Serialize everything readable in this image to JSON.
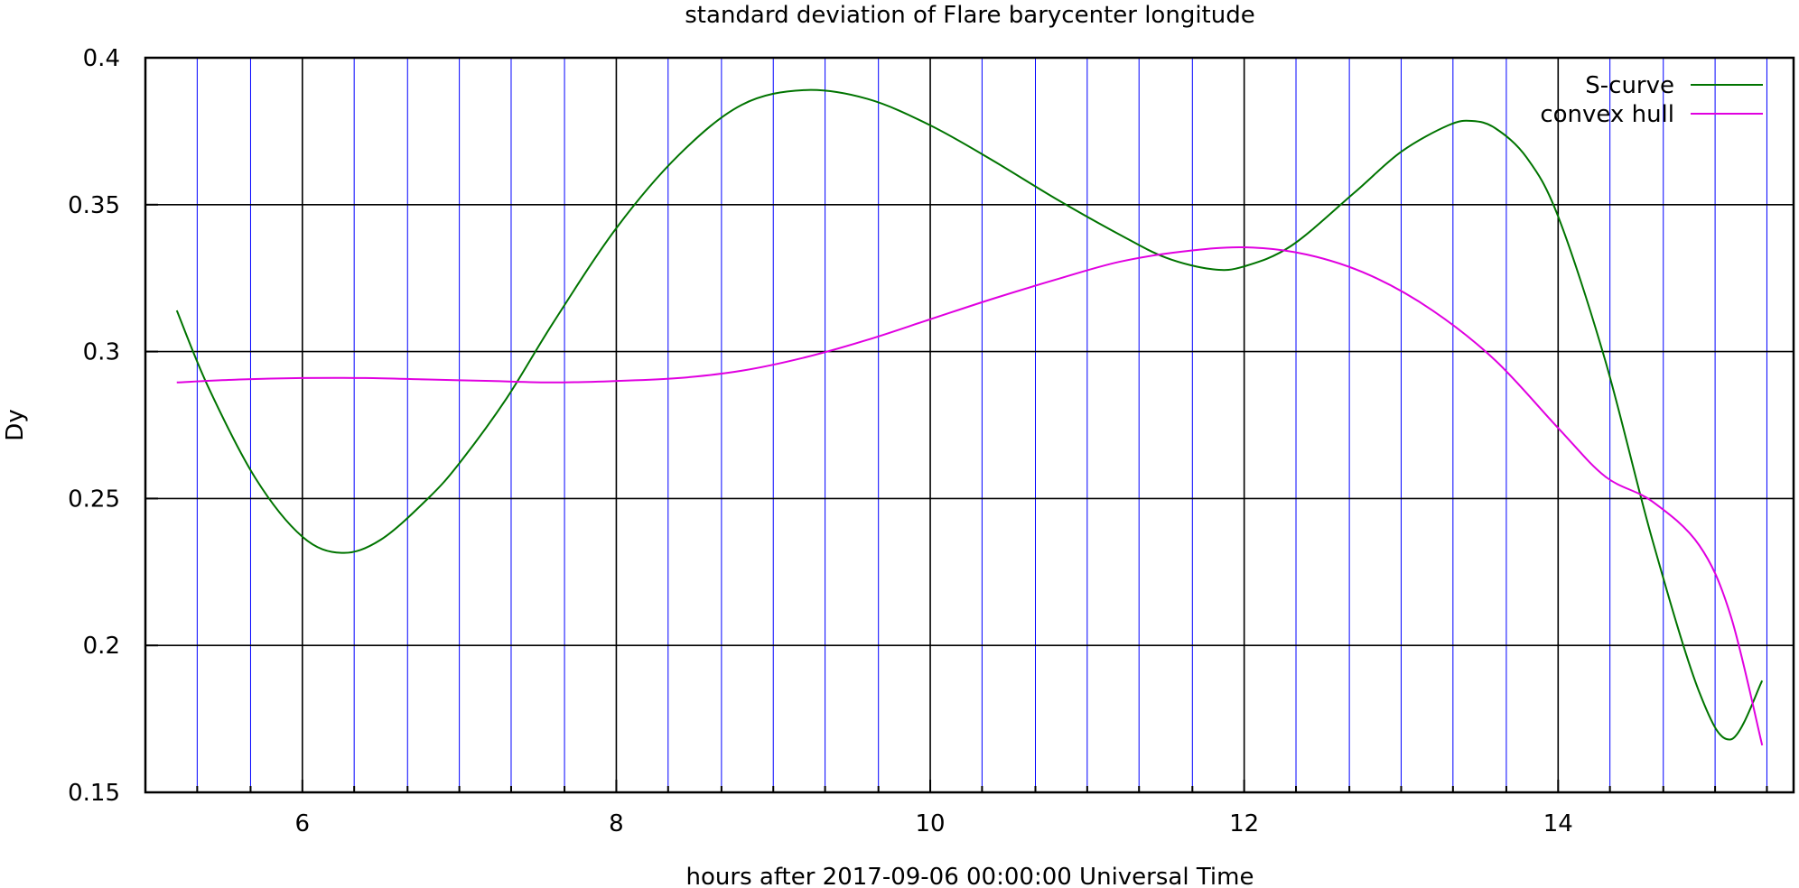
{
  "chart_data": {
    "type": "line",
    "title": "standard deviation of Flare barycenter longitude",
    "xlabel": "hours after 2017-09-06 00:00:00 Universal Time",
    "ylabel": "Dy",
    "xlim": [
      5,
      15.5
    ],
    "ylim": [
      0.15,
      0.4
    ],
    "x_ticks": [
      6,
      8,
      10,
      12,
      14
    ],
    "x_tick_labels": [
      "6",
      "8",
      "10",
      "12",
      "14"
    ],
    "y_ticks": [
      0.15,
      0.2,
      0.25,
      0.3,
      0.35,
      0.4
    ],
    "y_tick_labels": [
      "0.15",
      "0.2",
      "0.25",
      "0.3",
      "0.35",
      "0.4"
    ],
    "minor_x_gridlines": [
      5.33,
      5.67,
      6.33,
      6.67,
      7,
      7.33,
      7.67,
      8.33,
      8.67,
      9,
      9.33,
      9.67,
      10.33,
      10.67,
      11,
      11.33,
      11.67,
      12.33,
      12.67,
      13,
      13.33,
      13.67,
      14.33,
      14.67,
      15,
      15.33
    ],
    "grid": true,
    "legend_position": "top-right",
    "series": [
      {
        "name": "S-curve",
        "color": "#007400",
        "x": [
          5.2,
          5.4,
          5.7,
          6.0,
          6.25,
          6.5,
          6.8,
          7.0,
          7.3,
          7.6,
          8.0,
          8.4,
          8.8,
          9.2,
          9.6,
          10.0,
          10.4,
          10.8,
          11.2,
          11.5,
          11.8,
          12.0,
          12.3,
          12.7,
          13.0,
          13.3,
          13.45,
          13.6,
          13.8,
          14.0,
          14.3,
          14.6,
          14.9,
          15.1,
          15.3
        ],
        "y": [
          0.314,
          0.288,
          0.257,
          0.237,
          0.2315,
          0.236,
          0.25,
          0.262,
          0.284,
          0.31,
          0.342,
          0.367,
          0.384,
          0.389,
          0.386,
          0.377,
          0.365,
          0.352,
          0.34,
          0.332,
          0.328,
          0.329,
          0.336,
          0.354,
          0.368,
          0.377,
          0.3785,
          0.376,
          0.366,
          0.346,
          0.297,
          0.236,
          0.184,
          0.168,
          0.188
        ]
      },
      {
        "name": "convex hull",
        "color": "#e000e0",
        "x": [
          5.2,
          5.6,
          6.0,
          6.4,
          6.8,
          7.2,
          7.6,
          8.0,
          8.4,
          8.8,
          9.2,
          9.6,
          10.0,
          10.4,
          10.8,
          11.2,
          11.6,
          12.0,
          12.4,
          12.8,
          13.2,
          13.6,
          14.0,
          14.3,
          14.6,
          14.9,
          15.1,
          15.3
        ],
        "y": [
          0.2895,
          0.2905,
          0.291,
          0.291,
          0.2905,
          0.29,
          0.2895,
          0.29,
          0.291,
          0.2935,
          0.298,
          0.304,
          0.311,
          0.318,
          0.3245,
          0.3305,
          0.334,
          0.3355,
          0.333,
          0.326,
          0.314,
          0.297,
          0.274,
          0.2575,
          0.249,
          0.234,
          0.21,
          0.166
        ]
      }
    ]
  }
}
